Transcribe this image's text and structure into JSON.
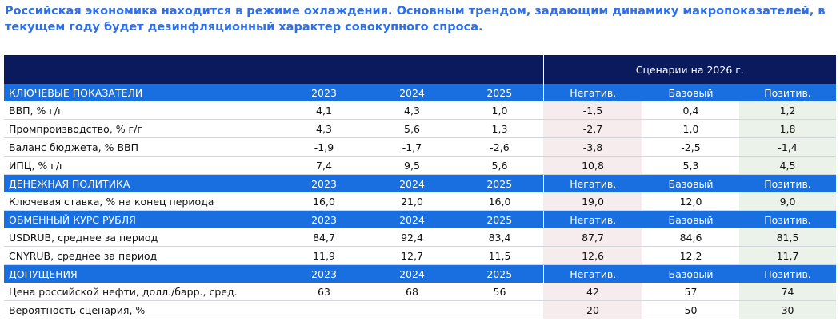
{
  "title": "Российская экономика находится в режиме охлаждения. Основным трендом, задающим динамику макропоказателей, в текущем году будет дезинфляционный характер совокупного спроса.",
  "scenario_header": "Сценарии на 2026 г.",
  "columns": [
    "2023",
    "2024",
    "2025",
    "Негатив.",
    "Базовый",
    "Позитив."
  ],
  "colors": {
    "title": "#2f6fe6",
    "header_dark": "#0a1a5c",
    "section": "#1a6fe0",
    "negative_bg": "#f6eced",
    "positive_bg": "#ebf2ea"
  },
  "sections": [
    {
      "name": "КЛЮЧЕВЫЕ ПОКАЗАТЕЛИ",
      "rows": [
        {
          "label": "ВВП, % г/г",
          "values": [
            "4,1",
            "4,3",
            "1,0",
            "-1,5",
            "0,4",
            "1,2"
          ]
        },
        {
          "label": "Промпроизводство, % г/г",
          "values": [
            "4,3",
            "5,6",
            "1,3",
            "-2,7",
            "1,0",
            "1,8"
          ]
        },
        {
          "label": "Баланс бюджета, % ВВП",
          "values": [
            "-1,9",
            "-1,7",
            "-2,6",
            "-3,8",
            "-2,5",
            "-1,4"
          ]
        },
        {
          "label": "ИПЦ, % г/г",
          "values": [
            "7,4",
            "9,5",
            "5,6",
            "10,8",
            "5,3",
            "4,5"
          ]
        }
      ]
    },
    {
      "name": "ДЕНЕЖНАЯ ПОЛИТИКА",
      "rows": [
        {
          "label": "Ключевая ставка, % на конец периода",
          "values": [
            "16,0",
            "21,0",
            "16,0",
            "19,0",
            "12,0",
            "9,0"
          ]
        }
      ]
    },
    {
      "name": "ОБМЕННЫЙ КУРС РУБЛЯ",
      "rows": [
        {
          "label": "USDRUB, среднее за период",
          "values": [
            "84,7",
            "92,4",
            "83,4",
            "87,7",
            "84,6",
            "81,5"
          ]
        },
        {
          "label": "CNYRUB, среднее за период",
          "values": [
            "11,9",
            "12,7",
            "11,5",
            "12,6",
            "12,2",
            "11,7"
          ]
        }
      ]
    },
    {
      "name": "ДОПУЩЕНИЯ",
      "rows": [
        {
          "label": "Цена российской нефти, долл./барр., сред.",
          "values": [
            "63",
            "68",
            "56",
            "42",
            "57",
            "74"
          ]
        },
        {
          "label": "Вероятность сценария, %",
          "values": [
            "",
            "",
            "",
            "20",
            "50",
            "30"
          ]
        }
      ]
    }
  ]
}
